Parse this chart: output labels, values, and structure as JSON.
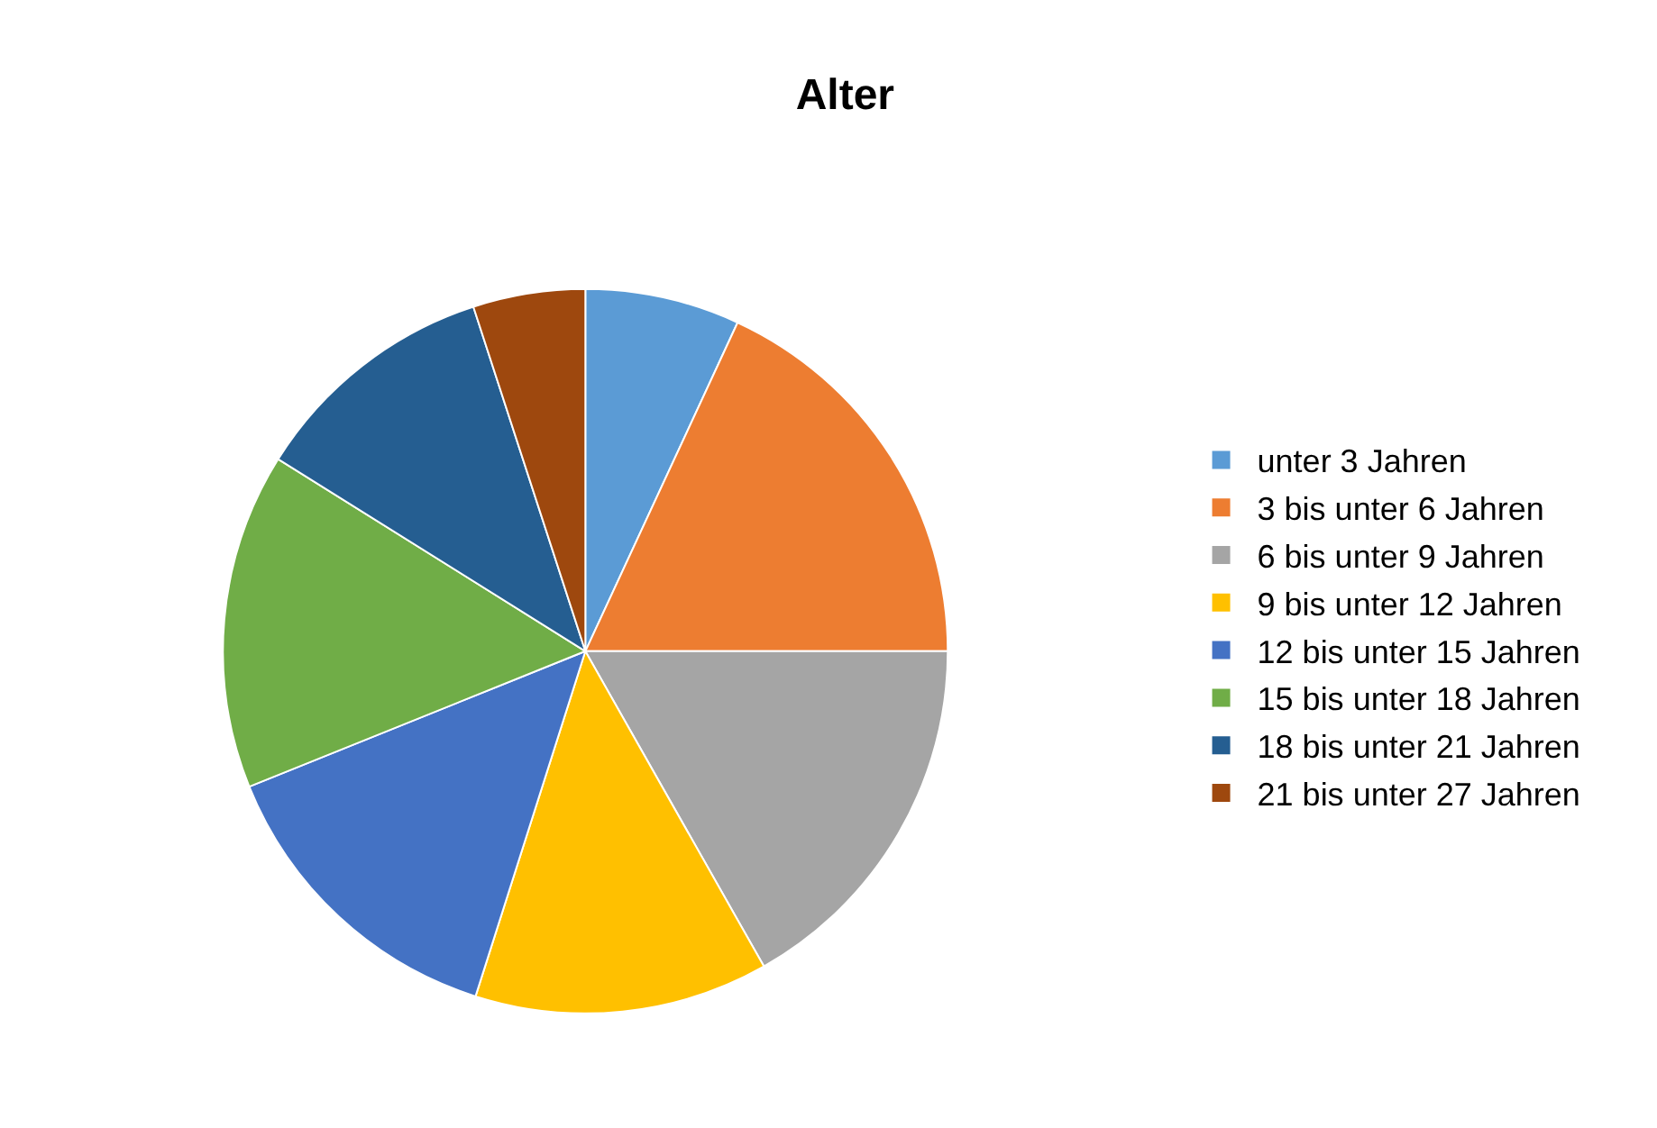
{
  "chart_data": {
    "type": "pie",
    "title": "Alter",
    "categories": [
      "unter 3 Jahren",
      "3 bis unter 6 Jahren",
      "6 bis unter 9 Jahren",
      "9 bis unter 12 Jahren",
      "12 bis unter 15 Jahren",
      "15 bis unter 18 Jahren",
      "18 bis unter 21 Jahren",
      "21 bis unter 27 Jahren"
    ],
    "values": [
      6.9,
      18.1,
      16.8,
      13.1,
      14,
      15,
      11.1,
      5
    ],
    "colors": [
      "#5b9bd5",
      "#ed7d31",
      "#a5a5a5",
      "#ffc000",
      "#4472c4",
      "#70ad47",
      "#255e91",
      "#9e480e"
    ],
    "legend": "right"
  }
}
